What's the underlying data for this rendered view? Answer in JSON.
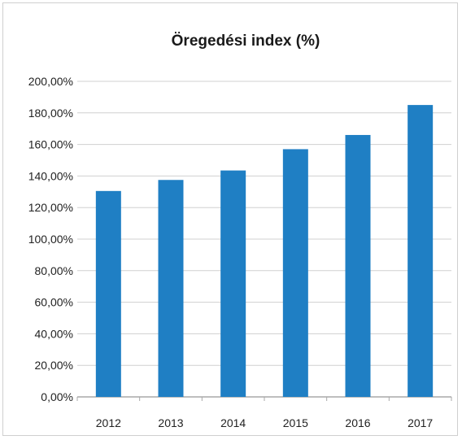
{
  "chart_data": {
    "type": "bar",
    "title": "Öregedési index (%)",
    "xlabel": "",
    "ylabel": "",
    "categories": [
      "2012",
      "2013",
      "2014",
      "2015",
      "2016",
      "2017"
    ],
    "values": [
      130.5,
      137.5,
      143.5,
      157,
      166,
      185
    ],
    "ylim": [
      0,
      200
    ],
    "y_ticks": [
      "0,00%",
      "20,00%",
      "40,00%",
      "60,00%",
      "80,00%",
      "100,00%",
      "120,00%",
      "140,00%",
      "160,00%",
      "180,00%",
      "200,00%"
    ],
    "grid": true,
    "legend": "none",
    "bar_color": "#1f7fc4",
    "gridline_color": "#d0d0d0"
  }
}
